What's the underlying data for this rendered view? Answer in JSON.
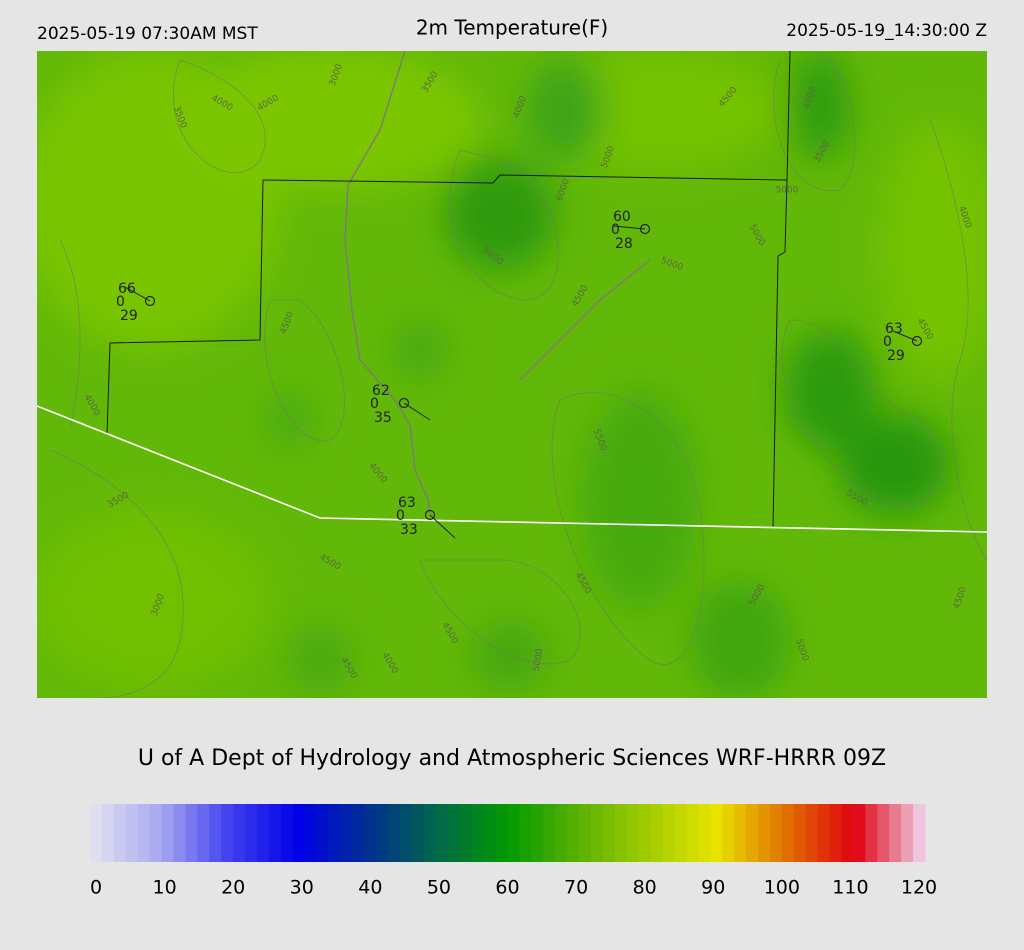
{
  "header": {
    "local_time": "2025-05-19 07:30AM MST",
    "title": "2m Temperature(F)",
    "utc_time": "2025-05-19_14:30:00 Z"
  },
  "stations": [
    {
      "temperature": 66,
      "wind": 0,
      "dewpoint": 29
    },
    {
      "temperature": 60,
      "wind": 0,
      "dewpoint": 28
    },
    {
      "temperature": 63,
      "wind": 0,
      "dewpoint": 29
    },
    {
      "temperature": 62,
      "wind": 0,
      "dewpoint": 35
    },
    {
      "temperature": 63,
      "wind": 0,
      "dewpoint": 33
    }
  ],
  "contour_labels": [
    4000,
    4000,
    3500,
    4000,
    3000,
    3500,
    4500,
    3500,
    5000,
    6000,
    5000,
    5000,
    5000,
    4000,
    6000,
    4500,
    4500,
    4500,
    4000,
    5500,
    4000,
    3500,
    5500,
    4500,
    3000,
    4500,
    5000,
    4500,
    4500,
    4000,
    5000,
    4500,
    5000,
    4000
  ],
  "credit": "U of A Dept of Hydrology and Atmospheric Sciences WRF-HRRR 09Z",
  "colorbar": {
    "ticks": [
      0,
      10,
      20,
      30,
      40,
      50,
      60,
      70,
      80,
      90,
      100,
      110,
      120
    ],
    "colors": [
      "#e4e4f2",
      "#a8a8f0",
      "#4040f0",
      "#0000e8",
      "#003090",
      "#006848",
      "#009a00",
      "#58b000",
      "#a0cc00",
      "#e8e400",
      "#e07000",
      "#e00010",
      "#f0d8f0"
    ]
  }
}
